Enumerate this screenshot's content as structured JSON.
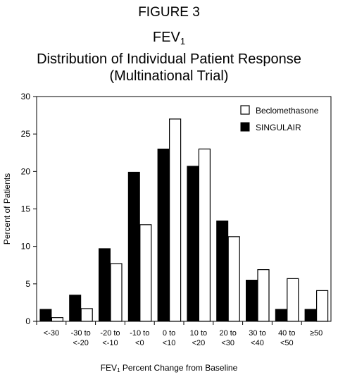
{
  "figure": {
    "label": "FIGURE 3",
    "title_main": "FEV",
    "title_sub": "1",
    "subtitle_line1": "Distribution of Individual Patient Response",
    "subtitle_line2": "(Multinational Trial)"
  },
  "chart_data": {
    "type": "bar",
    "title": "FEV1 Distribution of Individual Patient Response (Multinational Trial)",
    "xlabel_main": "FEV",
    "xlabel_sub": "1",
    "xlabel_rest": " Percent Change from Baseline",
    "ylabel": "Percent of Patients",
    "ylim": [
      0,
      30
    ],
    "yticks": [
      0,
      5,
      10,
      15,
      20,
      25,
      30
    ],
    "grid": false,
    "legend_position": "top-right",
    "categories": [
      [
        "<-30"
      ],
      [
        "-30 to",
        "<-20"
      ],
      [
        "-20 to",
        "<-10"
      ],
      [
        "-10 to",
        "<0"
      ],
      [
        "0 to",
        "<10"
      ],
      [
        "10 to",
        "<20"
      ],
      [
        "20 to",
        "<30"
      ],
      [
        "30 to",
        "<40"
      ],
      [
        "40 to",
        "<50"
      ],
      [
        "≥50"
      ]
    ],
    "series": [
      {
        "name": "SINGULAIR",
        "fill": "#000000",
        "values": [
          1.6,
          3.5,
          9.7,
          19.9,
          23.0,
          20.7,
          13.4,
          5.5,
          1.6,
          1.6
        ]
      },
      {
        "name": "Beclomethasone",
        "fill": "#ffffff",
        "values": [
          0.5,
          1.7,
          7.7,
          12.9,
          27.0,
          23.0,
          11.3,
          6.9,
          5.7,
          4.1
        ]
      }
    ],
    "legend_order": [
      "Beclomethasone",
      "SINGULAIR"
    ]
  }
}
